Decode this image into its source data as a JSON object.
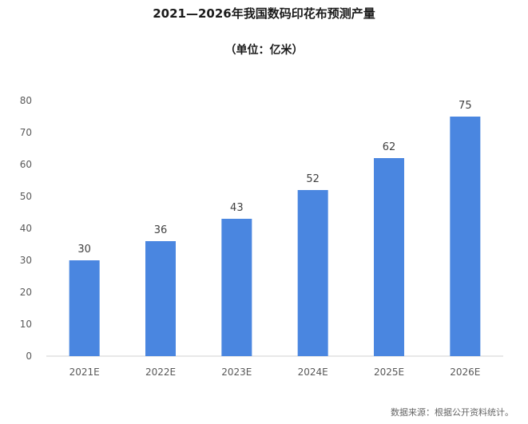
{
  "header": {
    "title": "2021—2026年我国数码印花布预测产量",
    "subtitle": "（单位：亿米）"
  },
  "footer": {
    "source": "数据来源：根据公开资料统计。"
  },
  "chart_data": {
    "type": "bar",
    "categories": [
      "2021E",
      "2022E",
      "2023E",
      "2024E",
      "2025E",
      "2026E"
    ],
    "values": [
      30,
      36,
      43,
      52,
      62,
      75
    ],
    "title": "2021—2026年我国数码印花布预测产量",
    "subtitle": "（单位：亿米）",
    "xlabel": "",
    "ylabel": "",
    "ylim": [
      0,
      80
    ],
    "yticks": [
      0,
      10,
      20,
      30,
      40,
      50,
      60,
      70,
      80
    ],
    "grid": false,
    "legend": "none",
    "data_labels": true,
    "bar_color": "#4a86e0"
  }
}
